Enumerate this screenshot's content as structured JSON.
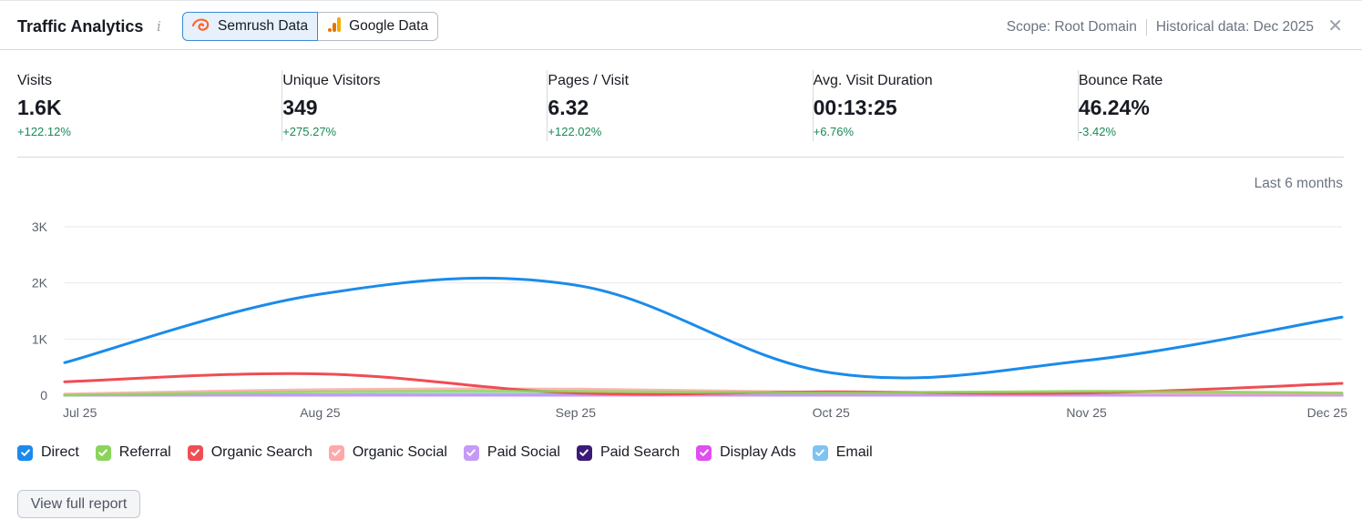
{
  "header": {
    "title": "Traffic Analytics",
    "info_icon": "info-icon",
    "tabs": [
      {
        "label": "Semrush Data",
        "icon": "semrush-logo-icon",
        "active": true
      },
      {
        "label": "Google Data",
        "icon": "google-analytics-icon",
        "active": false
      }
    ],
    "scope": "Scope: Root Domain",
    "historical": "Historical data: Dec 2025",
    "close_icon": "close-icon"
  },
  "metrics": [
    {
      "label": "Visits",
      "value": "1.6K",
      "delta": "+122.12%"
    },
    {
      "label": "Unique Visitors",
      "value": "349",
      "delta": "+275.27%"
    },
    {
      "label": "Pages / Visit",
      "value": "6.32",
      "delta": "+122.02%"
    },
    {
      "label": "Avg. Visit Duration",
      "value": "00:13:25",
      "delta": "+6.76%"
    },
    {
      "label": "Bounce Rate",
      "value": "46.24%",
      "delta": "-3.42%"
    }
  ],
  "period": "Last 6 months",
  "colors": {
    "accent": "#3a8bd8",
    "positive": "#1a8a5a"
  },
  "chart_data": {
    "type": "line",
    "x": [
      "Jul 25",
      "Aug 25",
      "Sep 25",
      "Oct 25",
      "Nov 25",
      "Dec 25"
    ],
    "y_ticks": [
      "0",
      "1K",
      "2K",
      "3K"
    ],
    "ylim": [
      0,
      3000
    ],
    "grid": true,
    "series": [
      {
        "name": "Direct",
        "color": "#1a8bea",
        "values": [
          580,
          1800,
          1960,
          400,
          620,
          1390
        ]
      },
      {
        "name": "Referral",
        "color": "#8bd45a",
        "values": [
          0,
          60,
          70,
          40,
          70,
          40
        ]
      },
      {
        "name": "Organic Search",
        "color": "#ef4d55",
        "values": [
          240,
          380,
          40,
          60,
          40,
          210
        ]
      },
      {
        "name": "Organic Social",
        "color": "#ffa8aa",
        "values": [
          20,
          100,
          110,
          50,
          40,
          30
        ]
      },
      {
        "name": "Paid Social",
        "color": "#c59af7",
        "values": [
          0,
          0,
          0,
          0,
          0,
          0
        ]
      },
      {
        "name": "Paid Search",
        "color": "#3b1a78",
        "values": [
          0,
          0,
          0,
          0,
          0,
          0
        ]
      },
      {
        "name": "Display Ads",
        "color": "#e04ef0",
        "values": [
          0,
          0,
          0,
          0,
          0,
          0
        ]
      },
      {
        "name": "Email",
        "color": "#7ec3f2",
        "values": [
          0,
          10,
          20,
          10,
          10,
          10
        ]
      }
    ]
  },
  "legend": [
    {
      "label": "Direct",
      "color": "#1a8bea"
    },
    {
      "label": "Referral",
      "color": "#8bd45a"
    },
    {
      "label": "Organic Search",
      "color": "#ef4d55"
    },
    {
      "label": "Organic Social",
      "color": "#ffa8aa"
    },
    {
      "label": "Paid Social",
      "color": "#c59af7"
    },
    {
      "label": "Paid Search",
      "color": "#3b1a78"
    },
    {
      "label": "Display Ads",
      "color": "#e04ef0"
    },
    {
      "label": "Email",
      "color": "#7ec3f2"
    }
  ],
  "footer": {
    "report_label": "View full report"
  }
}
